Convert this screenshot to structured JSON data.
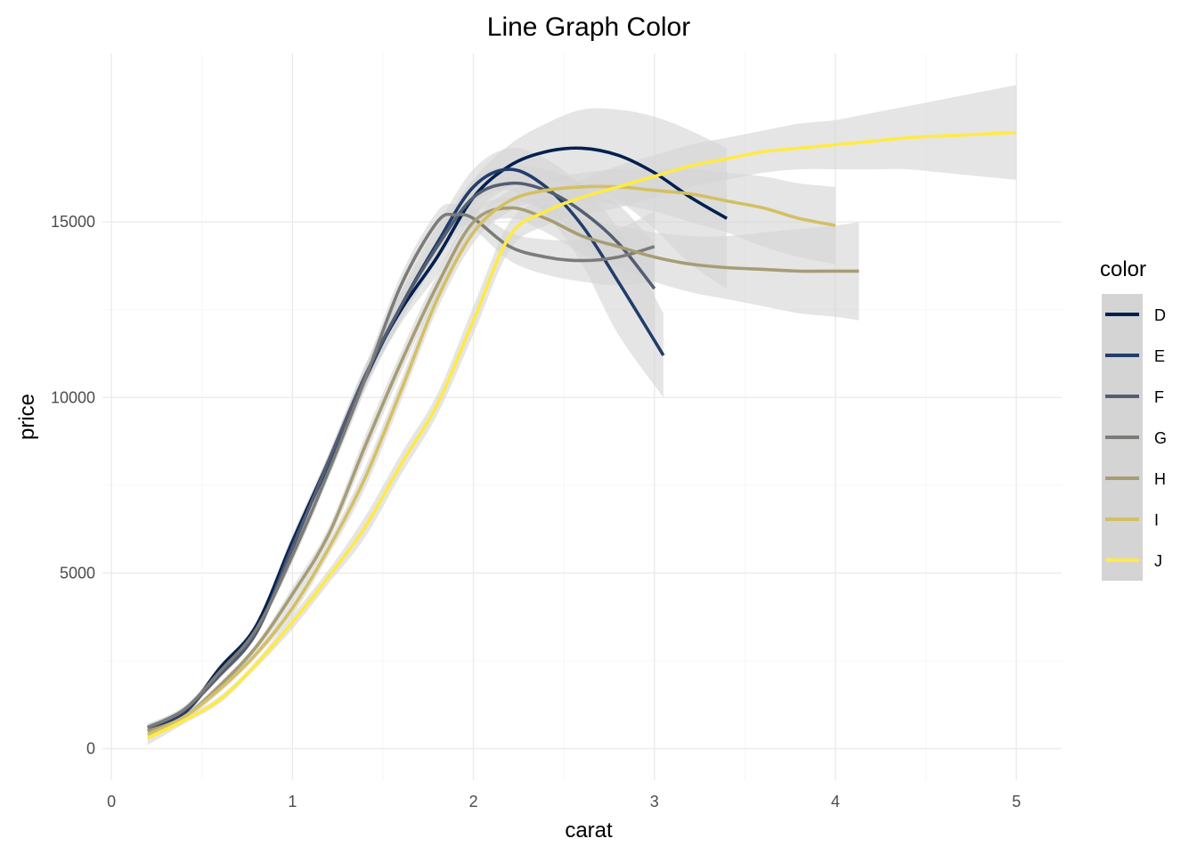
{
  "chart_data": {
    "type": "line",
    "title": "Line Graph Color",
    "xlabel": "carat",
    "ylabel": "price",
    "xlim": [
      -0.05,
      5.25
    ],
    "ylim": [
      -900,
      19800
    ],
    "xticks": [
      0,
      1,
      2,
      3,
      4,
      5
    ],
    "yticks": [
      0,
      5000,
      10000,
      15000
    ],
    "grid": true,
    "legend": {
      "title": "color",
      "position": "right"
    },
    "ribbon_color": "#d4d4d4",
    "series": [
      {
        "name": "D",
        "color": "#00204d",
        "x": [
          0.2,
          0.4,
          0.6,
          0.8,
          1.0,
          1.2,
          1.4,
          1.6,
          1.8,
          2.0,
          2.2,
          2.4,
          2.6,
          2.8,
          3.0,
          3.2,
          3.4
        ],
        "y": [
          600,
          1000,
          2300,
          3500,
          5900,
          8200,
          10600,
          12500,
          14000,
          15700,
          16600,
          17000,
          17100,
          16900,
          16400,
          15700,
          15100
        ],
        "lower": [
          500,
          900,
          2200,
          3400,
          5700,
          8000,
          10300,
          12100,
          13500,
          15200,
          16000,
          16200,
          16000,
          15600,
          14800,
          13800,
          13100
        ],
        "upper": [
          700,
          1100,
          2400,
          3600,
          6100,
          8400,
          10900,
          12900,
          14500,
          16200,
          17200,
          17800,
          18200,
          18200,
          18000,
          17600,
          17100
        ]
      },
      {
        "name": "E",
        "color": "#213d6b",
        "x": [
          0.2,
          0.4,
          0.6,
          0.8,
          1.0,
          1.2,
          1.4,
          1.6,
          1.8,
          2.0,
          2.2,
          2.4,
          2.6,
          2.8,
          3.05
        ],
        "y": [
          500,
          1000,
          2200,
          3300,
          5800,
          8100,
          10500,
          12600,
          14400,
          16000,
          16500,
          16000,
          14900,
          13300,
          11200
        ],
        "lower": [
          400,
          900,
          2100,
          3200,
          5600,
          7900,
          10200,
          12200,
          13900,
          15500,
          15900,
          15200,
          13800,
          11800,
          10000
        ],
        "upper": [
          600,
          1100,
          2300,
          3400,
          6000,
          8300,
          10800,
          13000,
          14900,
          16500,
          17100,
          16800,
          16000,
          14800,
          12400
        ]
      },
      {
        "name": "F",
        "color": "#545d72",
        "x": [
          0.2,
          0.4,
          0.6,
          0.8,
          1.0,
          1.2,
          1.4,
          1.6,
          1.8,
          2.0,
          2.2,
          2.4,
          2.6,
          2.8,
          3.0
        ],
        "y": [
          600,
          1100,
          2100,
          3300,
          5700,
          8200,
          10600,
          12600,
          14300,
          15700,
          16100,
          15900,
          15300,
          14400,
          13100
        ],
        "lower": [
          500,
          1000,
          2000,
          3200,
          5500,
          8000,
          10300,
          12200,
          13900,
          15200,
          15600,
          15300,
          14500,
          13300,
          11800
        ],
        "upper": [
          700,
          1200,
          2200,
          3400,
          5900,
          8400,
          10900,
          13000,
          14700,
          16200,
          16600,
          16500,
          16100,
          15500,
          14400
        ]
      },
      {
        "name": "G",
        "color": "#7b7b78",
        "x": [
          0.2,
          0.4,
          0.6,
          0.8,
          1.0,
          1.2,
          1.4,
          1.6,
          1.8,
          1.9,
          2.0,
          2.2,
          2.4,
          2.6,
          2.8,
          3.0
        ],
        "y": [
          600,
          1100,
          2200,
          3400,
          5500,
          7900,
          10500,
          13200,
          15000,
          15200,
          15100,
          14300,
          14000,
          13900,
          14000,
          14300
        ],
        "lower": [
          500,
          1000,
          2100,
          3300,
          5300,
          7700,
          10200,
          12900,
          14700,
          14900,
          14800,
          13900,
          13500,
          13300,
          13200,
          13300
        ],
        "upper": [
          700,
          1200,
          2300,
          3500,
          5700,
          8100,
          10800,
          13500,
          15300,
          15500,
          15400,
          14700,
          14500,
          14500,
          14800,
          15300
        ]
      },
      {
        "name": "H",
        "color": "#a69d75",
        "x": [
          0.2,
          0.4,
          0.6,
          0.8,
          1.0,
          1.2,
          1.4,
          1.6,
          1.8,
          2.0,
          2.2,
          2.4,
          2.6,
          2.8,
          3.0,
          3.2,
          3.4,
          3.6,
          3.8,
          4.0,
          4.13
        ],
        "y": [
          500,
          900,
          1800,
          2900,
          4400,
          6100,
          8600,
          11000,
          13200,
          15000,
          15400,
          15100,
          14600,
          14300,
          14000,
          13800,
          13700,
          13650,
          13600,
          13600,
          13600
        ],
        "lower": [
          400,
          800,
          1700,
          2800,
          4200,
          5900,
          8300,
          10700,
          12900,
          14700,
          15100,
          14700,
          14100,
          13700,
          13300,
          13000,
          12800,
          12600,
          12400,
          12300,
          12200
        ],
        "upper": [
          600,
          1000,
          1900,
          3000,
          4600,
          6300,
          8900,
          11300,
          13500,
          15300,
          15700,
          15500,
          15100,
          14900,
          14700,
          14600,
          14600,
          14700,
          14800,
          14900,
          15000
        ]
      },
      {
        "name": "I",
        "color": "#d3c064",
        "x": [
          0.2,
          0.4,
          0.6,
          0.8,
          1.0,
          1.2,
          1.4,
          1.6,
          1.8,
          2.0,
          2.2,
          2.4,
          2.6,
          2.8,
          3.0,
          3.2,
          3.4,
          3.6,
          3.8,
          4.0
        ],
        "y": [
          400,
          900,
          1700,
          2700,
          4000,
          5700,
          7700,
          10200,
          12800,
          14700,
          15600,
          15900,
          16000,
          16000,
          15900,
          15800,
          15600,
          15400,
          15100,
          14900
        ],
        "lower": [
          300,
          800,
          1600,
          2600,
          3800,
          5500,
          7400,
          9900,
          12500,
          14400,
          15300,
          15600,
          15600,
          15500,
          15300,
          15000,
          14700,
          14300,
          14000,
          13800
        ],
        "upper": [
          500,
          1000,
          1800,
          2800,
          4200,
          5900,
          8000,
          10500,
          13100,
          15000,
          15900,
          16200,
          16400,
          16500,
          16500,
          16500,
          16400,
          16300,
          16100,
          16000
        ]
      },
      {
        "name": "J",
        "color": "#ffea46",
        "x": [
          0.2,
          0.4,
          0.6,
          0.8,
          1.0,
          1.2,
          1.4,
          1.6,
          1.8,
          2.0,
          2.2,
          2.4,
          2.6,
          2.8,
          3.0,
          3.2,
          3.4,
          3.6,
          3.8,
          4.0,
          4.2,
          4.4,
          4.6,
          4.8,
          5.0
        ],
        "y": [
          300,
          800,
          1400,
          2400,
          3600,
          4900,
          6300,
          8100,
          9800,
          12200,
          14600,
          15300,
          15700,
          16000,
          16300,
          16600,
          16800,
          17000,
          17100,
          17200,
          17300,
          17400,
          17450,
          17500,
          17550
        ],
        "lower": [
          100,
          700,
          1300,
          2300,
          3400,
          4700,
          6000,
          7800,
          9500,
          11800,
          14200,
          14900,
          15200,
          15400,
          15700,
          16000,
          16200,
          16400,
          16500,
          16500,
          16500,
          16500,
          16400,
          16300,
          16200
        ],
        "upper": [
          500,
          900,
          1500,
          2500,
          3800,
          5100,
          6600,
          8400,
          10100,
          12600,
          15000,
          15700,
          16200,
          16600,
          16900,
          17200,
          17400,
          17600,
          17800,
          17900,
          18100,
          18300,
          18500,
          18700,
          18900
        ]
      }
    ]
  }
}
